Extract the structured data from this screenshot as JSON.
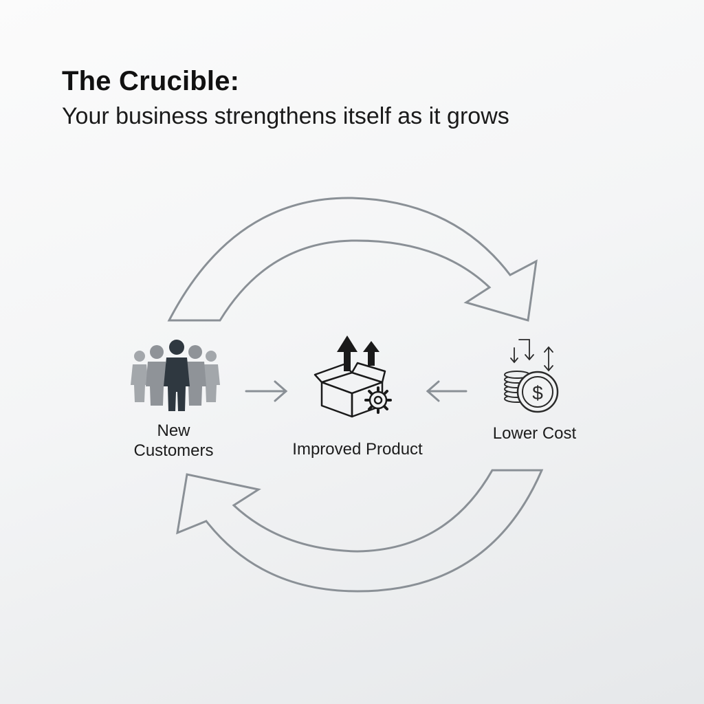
{
  "header": {
    "title": "The Crucible:",
    "subtitle": "Your business strengthens itself as it grows"
  },
  "nodes": {
    "customers": {
      "line1": "New",
      "line2": "Customers",
      "icon": "people-group-icon"
    },
    "product": {
      "label": "Improved Product",
      "icon": "box-with-up-arrows-and-gear-icon"
    },
    "cost": {
      "label": "Lower Cost",
      "icon": "coins-dollar-icon"
    }
  },
  "colors": {
    "arrow_stroke": "#8a9096",
    "people_light": "#9a9ea3",
    "people_dark": "#2f3840",
    "icon_dark": "#1a1a1a"
  }
}
